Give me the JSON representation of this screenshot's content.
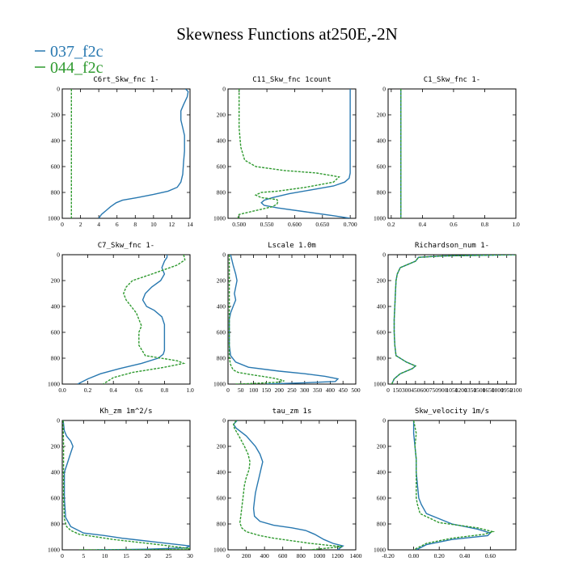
{
  "figure": {
    "title": "Skewness Functions at250E,-2N",
    "legend": [
      {
        "label": "037_f2c",
        "color": "#2878b0"
      },
      {
        "label": "044_f2c",
        "color": "#2f9a2f"
      }
    ]
  },
  "chart_data": [
    {
      "type": "line",
      "title": "C6rt_Skw_fnc   1-",
      "xlim": [
        0,
        14
      ],
      "ylim": [
        1000,
        0
      ],
      "xticks": [
        "0",
        "2",
        "4",
        "6",
        "8",
        "10",
        "12",
        "14"
      ],
      "yticks": [
        "0",
        "200",
        "400",
        "600",
        "800",
        "1000"
      ],
      "series": [
        {
          "name": "037_f2c",
          "color": "#2878b0",
          "dashed": false,
          "x": [
            13.5,
            13.8,
            13.7,
            13.3,
            13.0,
            13.0,
            13.2,
            13.4,
            13.4,
            13.4,
            13.3,
            13.2,
            13.0,
            12.6,
            11.6,
            10.0,
            8.2,
            6.6,
            5.9,
            5.3,
            4.8,
            4.3,
            4.0
          ],
          "y": [
            0,
            20,
            60,
            120,
            170,
            240,
            300,
            360,
            420,
            480,
            560,
            660,
            720,
            760,
            790,
            815,
            840,
            860,
            880,
            910,
            940,
            970,
            1000
          ]
        },
        {
          "name": "044_f2c",
          "color": "#2f9a2f",
          "dashed": true,
          "x": [
            1.0,
            1.0,
            1.0
          ],
          "y": [
            0,
            500,
            1000
          ]
        }
      ]
    },
    {
      "type": "line",
      "title": "C11_Skw_fnc   1count",
      "xlim": [
        0.48,
        0.71
      ],
      "ylim": [
        1000,
        0
      ],
      "xticks": [
        "0.500",
        "0.550",
        "0.600",
        "0.650",
        "0.700"
      ],
      "yticks": [
        "0",
        "200",
        "400",
        "600",
        "800",
        "1000"
      ],
      "series": [
        {
          "name": "037_f2c",
          "color": "#2878b0",
          "dashed": false,
          "x": [
            0.7,
            0.7,
            0.7,
            0.7,
            0.7,
            0.698,
            0.69,
            0.67,
            0.63,
            0.59,
            0.56,
            0.545,
            0.54,
            0.545,
            0.57,
            0.62,
            0.67,
            0.7
          ],
          "y": [
            0,
            200,
            400,
            600,
            650,
            690,
            720,
            750,
            780,
            810,
            840,
            860,
            880,
            900,
            920,
            950,
            980,
            1000
          ]
        },
        {
          "name": "044_f2c",
          "color": "#2f9a2f",
          "dashed": true,
          "x": [
            0.5,
            0.5,
            0.5,
            0.503,
            0.51,
            0.53,
            0.58,
            0.64,
            0.68,
            0.67,
            0.62,
            0.57,
            0.54,
            0.53,
            0.54,
            0.568,
            0.57,
            0.568,
            0.56,
            0.53,
            0.5,
            0.498,
            0.5
          ],
          "y": [
            0,
            150,
            300,
            450,
            550,
            600,
            630,
            650,
            680,
            720,
            760,
            790,
            800,
            820,
            840,
            855,
            870,
            890,
            910,
            940,
            970,
            990,
            1000
          ]
        }
      ]
    },
    {
      "type": "line",
      "title": "C1_Skw_fnc   1-",
      "xlim": [
        0.18,
        1.0
      ],
      "ylim": [
        1000,
        0
      ],
      "xticks": [
        "0.2",
        "0.4",
        "0.6",
        "0.8",
        "1.0"
      ],
      "yticks": [
        "0",
        "200",
        "400",
        "600",
        "800",
        "1000"
      ],
      "series": [
        {
          "name": "037_f2c",
          "color": "#2878b0",
          "dashed": false,
          "x": [
            0.262,
            0.262,
            0.262
          ],
          "y": [
            0,
            500,
            1000
          ]
        },
        {
          "name": "044_f2c",
          "color": "#2f9a2f",
          "dashed": true,
          "x": [
            0.262,
            0.262,
            0.262
          ],
          "y": [
            0,
            500,
            1000
          ]
        }
      ]
    },
    {
      "type": "line",
      "title": "C7_Skw_fnc   1-",
      "xlim": [
        0.0,
        1.0
      ],
      "ylim": [
        1000,
        0
      ],
      "xticks": [
        "0.0",
        "0.2",
        "0.4",
        "0.6",
        "0.8",
        "1.0"
      ],
      "yticks": [
        "0",
        "200",
        "400",
        "600",
        "800",
        "1000"
      ],
      "series": [
        {
          "name": "037_f2c",
          "color": "#2878b0",
          "dashed": false,
          "x": [
            0.82,
            0.82,
            0.8,
            0.78,
            0.8,
            0.77,
            0.7,
            0.65,
            0.63,
            0.66,
            0.72,
            0.78,
            0.8,
            0.8,
            0.8,
            0.8,
            0.79,
            0.75,
            0.62,
            0.45,
            0.3,
            0.2,
            0.12
          ],
          "y": [
            0,
            20,
            50,
            100,
            150,
            200,
            250,
            300,
            350,
            400,
            430,
            480,
            540,
            600,
            680,
            740,
            770,
            800,
            840,
            880,
            920,
            960,
            1000
          ]
        },
        {
          "name": "044_f2c",
          "color": "#2f9a2f",
          "dashed": true,
          "x": [
            0.95,
            0.96,
            0.9,
            0.7,
            0.55,
            0.5,
            0.48,
            0.5,
            0.54,
            0.58,
            0.6,
            0.62,
            0.6,
            0.6,
            0.65,
            0.9,
            0.95,
            0.8,
            0.55,
            0.4,
            0.32
          ],
          "y": [
            0,
            40,
            80,
            150,
            200,
            250,
            300,
            350,
            400,
            450,
            500,
            550,
            600,
            700,
            780,
            820,
            840,
            870,
            910,
            950,
            1000
          ]
        }
      ]
    },
    {
      "type": "line",
      "title": "Lscale   1.0m",
      "xlim": [
        0,
        500
      ],
      "ylim": [
        1000,
        0
      ],
      "xticks": [
        "0",
        "50",
        "100",
        "150",
        "200",
        "250",
        "300",
        "350",
        "400",
        "450",
        "500"
      ],
      "yticks": [
        "0",
        "200",
        "400",
        "600",
        "800",
        "1000"
      ],
      "series": [
        {
          "name": "037_f2c",
          "color": "#2878b0",
          "dashed": false,
          "x": [
            10,
            20,
            30,
            35,
            30,
            25,
            30,
            20,
            10,
            5,
            5,
            5,
            10,
            30,
            80,
            200,
            300,
            380,
            430,
            420,
            300,
            150
          ],
          "y": [
            0,
            80,
            150,
            200,
            250,
            300,
            350,
            400,
            450,
            500,
            600,
            700,
            780,
            830,
            870,
            900,
            920,
            940,
            960,
            980,
            990,
            1000
          ]
        },
        {
          "name": "044_f2c",
          "color": "#2f9a2f",
          "dashed": true,
          "x": [
            5,
            5,
            5,
            5,
            5,
            5,
            10,
            15,
            20,
            40,
            100,
            150,
            180,
            200,
            220,
            200,
            100,
            30
          ],
          "y": [
            0,
            100,
            300,
            500,
            700,
            800,
            850,
            870,
            890,
            910,
            930,
            945,
            955,
            965,
            975,
            985,
            995,
            1000
          ]
        }
      ]
    },
    {
      "type": "line",
      "title": "Richardson_num   1-",
      "xlim": [
        0,
        2100
      ],
      "ylim": [
        1000,
        0
      ],
      "xticks": [
        "0",
        "150",
        "300",
        "450",
        "600",
        "750",
        "900",
        "1050",
        "1200",
        "1350",
        "1500",
        "1650",
        "1800",
        "1950",
        "2100"
      ],
      "yticks": [
        "0",
        "200",
        "400",
        "600",
        "800",
        "1000"
      ],
      "series": [
        {
          "name": "037_f2c",
          "color": "#2878b0",
          "dashed": false,
          "x": [
            2100,
            1500,
            900,
            500,
            450,
            300,
            200,
            150,
            130,
            120,
            110,
            100,
            100,
            110,
            130,
            300,
            400,
            450,
            400,
            200,
            100,
            60
          ],
          "y": [
            0,
            5,
            10,
            20,
            50,
            80,
            100,
            150,
            200,
            300,
            400,
            500,
            600,
            700,
            780,
            830,
            850,
            860,
            880,
            920,
            960,
            1000
          ]
        },
        {
          "name": "044_f2c",
          "color": "#2f9a2f",
          "dashed": true,
          "x": [
            2100,
            1500,
            900,
            500,
            450,
            300,
            200,
            150,
            130,
            120,
            110,
            100,
            100,
            110,
            130,
            300,
            400,
            450,
            400,
            200,
            100,
            60
          ],
          "y": [
            0,
            5,
            10,
            20,
            50,
            80,
            100,
            150,
            200,
            300,
            400,
            500,
            600,
            700,
            780,
            830,
            850,
            860,
            880,
            920,
            960,
            1000
          ]
        }
      ]
    },
    {
      "type": "line",
      "title": "Kh_zm   1m^2/s",
      "xlim": [
        0,
        30
      ],
      "ylim": [
        1000,
        0
      ],
      "xticks": [
        "0",
        "5",
        "10",
        "15",
        "20",
        "25",
        "30"
      ],
      "yticks": [
        "0",
        "200",
        "400",
        "600",
        "800",
        "1000"
      ],
      "series": [
        {
          "name": "037_f2c",
          "color": "#2878b0",
          "dashed": false,
          "x": [
            0.2,
            0.5,
            1,
            2,
            2.5,
            2,
            1.5,
            1,
            0.5,
            0.5,
            0.8,
            2,
            5,
            10,
            14,
            18,
            22,
            26,
            30,
            29,
            20,
            8
          ],
          "y": [
            0,
            80,
            120,
            160,
            200,
            250,
            300,
            350,
            400,
            600,
            750,
            820,
            870,
            890,
            910,
            925,
            940,
            955,
            970,
            985,
            995,
            1000
          ]
        },
        {
          "name": "044_f2c",
          "color": "#2f9a2f",
          "dashed": true,
          "x": [
            0.2,
            0.3,
            0.3,
            0.3,
            0.5,
            1,
            2,
            4,
            8,
            12,
            16,
            20,
            24,
            27,
            30,
            29,
            18,
            4
          ],
          "y": [
            0,
            200,
            400,
            600,
            760,
            820,
            850,
            880,
            900,
            920,
            935,
            950,
            965,
            978,
            990,
            996,
            999,
            1000
          ]
        }
      ]
    },
    {
      "type": "line",
      "title": "tau_zm   1s",
      "xlim": [
        0,
        1400
      ],
      "ylim": [
        1000,
        0
      ],
      "xticks": [
        "0",
        "200",
        "400",
        "600",
        "800",
        "1000",
        "1200",
        "1400"
      ],
      "yticks": [
        "0",
        "200",
        "400",
        "600",
        "800",
        "1000"
      ],
      "series": [
        {
          "name": "037_f2c",
          "color": "#2878b0",
          "dashed": false,
          "x": [
            100,
            60,
            90,
            200,
            300,
            350,
            380,
            360,
            340,
            320,
            300,
            290,
            280,
            290,
            350,
            500,
            700,
            850,
            950,
            1050,
            1150,
            1260,
            1200
          ],
          "y": [
            0,
            30,
            60,
            120,
            200,
            260,
            320,
            380,
            440,
            500,
            560,
            620,
            680,
            740,
            780,
            810,
            830,
            850,
            880,
            920,
            950,
            970,
            1000
          ]
        },
        {
          "name": "044_f2c",
          "color": "#2f9a2f",
          "dashed": true,
          "x": [
            90,
            60,
            70,
            120,
            180,
            220,
            240,
            230,
            200,
            180,
            170,
            160,
            150,
            140,
            130,
            150,
            200,
            350,
            500,
            700,
            900,
            1100,
            1250,
            900
          ],
          "y": [
            0,
            30,
            60,
            120,
            200,
            260,
            320,
            380,
            440,
            500,
            560,
            620,
            680,
            740,
            790,
            830,
            860,
            890,
            910,
            930,
            950,
            965,
            975,
            1000
          ]
        }
      ]
    },
    {
      "type": "line",
      "title": "Skw_velocity   1m/s",
      "xlim": [
        -0.2,
        0.8
      ],
      "ylim": [
        1000,
        0
      ],
      "xticks": [
        "-0.20",
        "0.00",
        "0.20",
        "0.40",
        "0.60"
      ],
      "yticks": [
        "0",
        "200",
        "400",
        "600",
        "800",
        "1000"
      ],
      "series": [
        {
          "name": "037_f2c",
          "color": "#2878b0",
          "dashed": false,
          "x": [
            0.0,
            0.0,
            0.01,
            0.02,
            0.02,
            0.03,
            0.04,
            0.06,
            0.1,
            0.3,
            0.5,
            0.6,
            0.58,
            0.3,
            0.1,
            0.02
          ],
          "y": [
            0,
            100,
            200,
            300,
            400,
            500,
            600,
            650,
            720,
            800,
            840,
            870,
            890,
            920,
            960,
            1000
          ]
        },
        {
          "name": "044_f2c",
          "color": "#2f9a2f",
          "dashed": true,
          "x": [
            0.0,
            0.02,
            0.01,
            0.02,
            0.02,
            0.02,
            0.02,
            0.03,
            0.05,
            0.2,
            0.5,
            0.62,
            0.55,
            0.3,
            0.1,
            0.0
          ],
          "y": [
            0,
            100,
            200,
            300,
            400,
            500,
            600,
            650,
            720,
            790,
            830,
            860,
            880,
            910,
            950,
            1000
          ]
        }
      ]
    }
  ]
}
